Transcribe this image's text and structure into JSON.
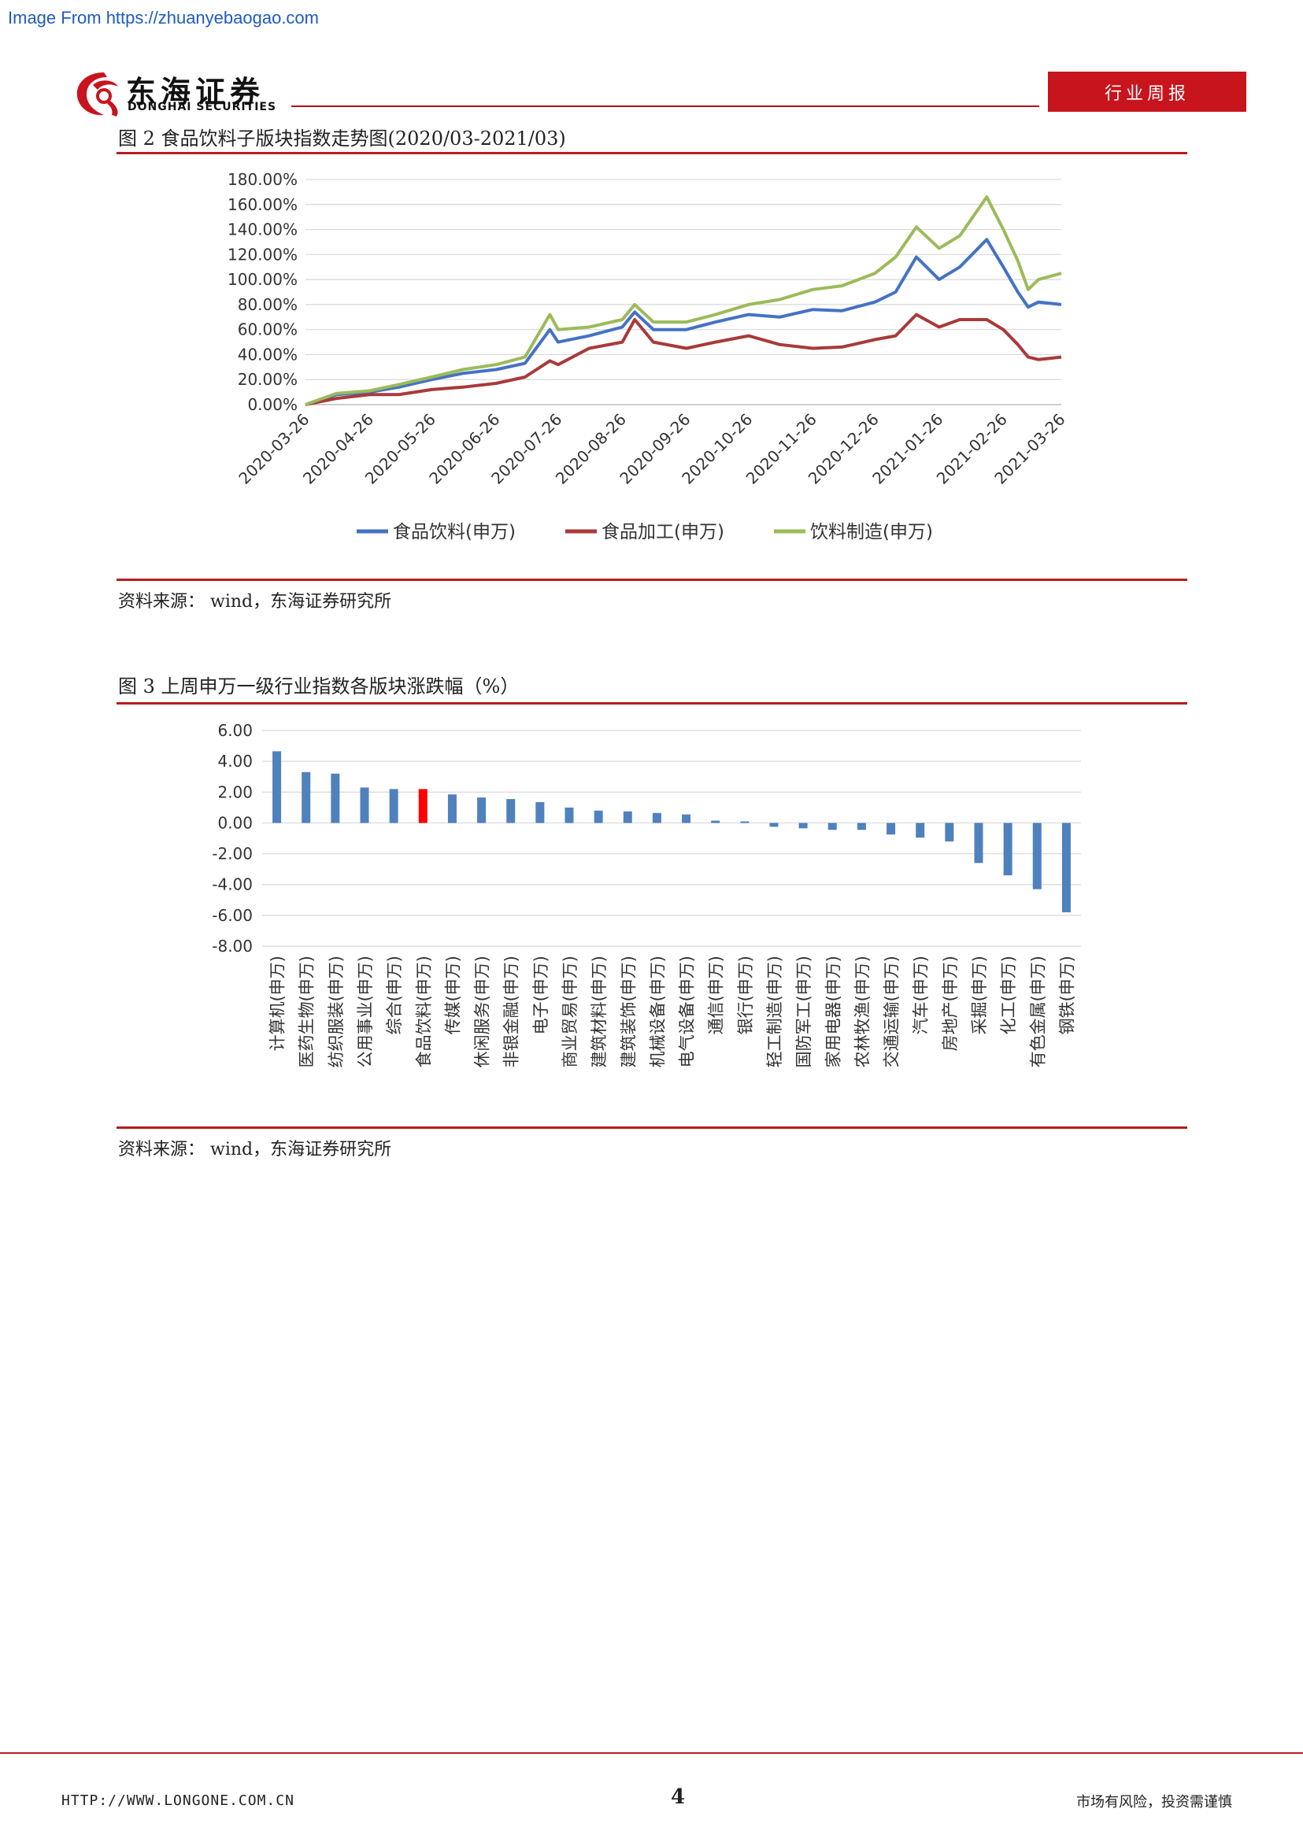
{
  "watermark": "Image From https://zhuanyebaogao.com",
  "header": {
    "brand_cn": "东海证券",
    "brand_en": "DONGHAI SECURITIES",
    "report_type": "行业周报"
  },
  "figure2": {
    "title": "图 2    食品饮料子版块指数走势图(2020/03-2021/03)",
    "source": "资料来源：  wind，东海证券研究所"
  },
  "figure3": {
    "title": "图 3    上周申万一级行业指数各版块涨跌幅（%）",
    "source": "资料来源：  wind，东海证券研究所"
  },
  "footer": {
    "url": "HTTP://WWW.LONGONE.COM.CN",
    "page_number": "4",
    "disclaimer": "市场有风险，投资需谨慎"
  },
  "colors": {
    "brand_red": "#c8141d",
    "series_blue": "#4472c4",
    "series_red": "#a93a3a",
    "series_green": "#9bbb59",
    "bar_blue": "#4f81bd",
    "bar_highlight": "#ff0000"
  },
  "chart_data": [
    {
      "type": "line",
      "x_ticks": [
        "2020-03-26",
        "2020-04-26",
        "2020-05-26",
        "2020-06-26",
        "2020-07-26",
        "2020-08-26",
        "2020-09-26",
        "2020-10-26",
        "2020-11-26",
        "2020-12-26",
        "2021-01-26",
        "2021-02-26",
        "2021-03-26"
      ],
      "y_ticks": [
        "180.00%",
        "160.00%",
        "140.00%",
        "120.00%",
        "100.00%",
        "80.00%",
        "60.00%",
        "40.00%",
        "20.00%",
        "0.00%"
      ],
      "ylim": [
        0,
        180
      ],
      "grid": true,
      "legend_position": "bottom",
      "series": [
        {
          "name": "食品饮料(申万)",
          "color": "#4472c4",
          "x": [
            "2020-03-26",
            "2020-04-10",
            "2020-04-26",
            "2020-05-10",
            "2020-05-26",
            "2020-06-10",
            "2020-06-26",
            "2020-07-10",
            "2020-07-22",
            "2020-07-26",
            "2020-08-10",
            "2020-08-26",
            "2020-09-01",
            "2020-09-10",
            "2020-09-26",
            "2020-10-10",
            "2020-10-26",
            "2020-11-10",
            "2020-11-26",
            "2020-12-10",
            "2020-12-26",
            "2021-01-05",
            "2021-01-15",
            "2021-01-26",
            "2021-02-05",
            "2021-02-18",
            "2021-02-26",
            "2021-03-05",
            "2021-03-10",
            "2021-03-15",
            "2021-03-26"
          ],
          "values": [
            0,
            8,
            10,
            14,
            20,
            25,
            28,
            33,
            60,
            50,
            55,
            62,
            74,
            60,
            60,
            66,
            72,
            70,
            76,
            75,
            82,
            90,
            118,
            100,
            110,
            132,
            110,
            90,
            78,
            82,
            80
          ]
        },
        {
          "name": "食品加工(申万)",
          "color": "#a93a3a",
          "x": [
            "2020-03-26",
            "2020-04-10",
            "2020-04-26",
            "2020-05-10",
            "2020-05-26",
            "2020-06-10",
            "2020-06-26",
            "2020-07-10",
            "2020-07-22",
            "2020-07-26",
            "2020-08-10",
            "2020-08-26",
            "2020-09-01",
            "2020-09-10",
            "2020-09-26",
            "2020-10-10",
            "2020-10-26",
            "2020-11-10",
            "2020-11-26",
            "2020-12-10",
            "2020-12-26",
            "2021-01-05",
            "2021-01-15",
            "2021-01-26",
            "2021-02-05",
            "2021-02-18",
            "2021-02-26",
            "2021-03-05",
            "2021-03-10",
            "2021-03-15",
            "2021-03-26"
          ],
          "values": [
            0,
            5,
            8,
            8,
            12,
            14,
            17,
            22,
            35,
            32,
            45,
            50,
            68,
            50,
            45,
            50,
            55,
            48,
            45,
            46,
            52,
            55,
            72,
            62,
            68,
            68,
            60,
            48,
            38,
            36,
            38
          ]
        },
        {
          "name": "饮料制造(申万)",
          "color": "#9bbb59",
          "x": [
            "2020-03-26",
            "2020-04-10",
            "2020-04-26",
            "2020-05-10",
            "2020-05-26",
            "2020-06-10",
            "2020-06-26",
            "2020-07-10",
            "2020-07-22",
            "2020-07-26",
            "2020-08-10",
            "2020-08-26",
            "2020-09-01",
            "2020-09-10",
            "2020-09-26",
            "2020-10-10",
            "2020-10-26",
            "2020-11-10",
            "2020-11-26",
            "2020-12-10",
            "2020-12-26",
            "2021-01-05",
            "2021-01-15",
            "2021-01-26",
            "2021-02-05",
            "2021-02-18",
            "2021-02-26",
            "2021-03-05",
            "2021-03-10",
            "2021-03-15",
            "2021-03-26"
          ],
          "values": [
            0,
            9,
            11,
            16,
            22,
            28,
            32,
            38,
            72,
            60,
            62,
            68,
            80,
            66,
            66,
            72,
            80,
            84,
            92,
            95,
            105,
            118,
            142,
            125,
            135,
            166,
            140,
            115,
            92,
            100,
            105
          ]
        }
      ]
    },
    {
      "type": "bar",
      "categories": [
        "计算机(申万)",
        "医药生物(申万)",
        "纺织服装(申万)",
        "公用事业(申万)",
        "综合(申万)",
        "食品饮料(申万)",
        "传媒(申万)",
        "休闲服务(申万)",
        "非银金融(申万)",
        "电子(申万)",
        "商业贸易(申万)",
        "建筑材料(申万)",
        "建筑装饰(申万)",
        "机械设备(申万)",
        "电气设备(申万)",
        "通信(申万)",
        "银行(申万)",
        "轻工制造(申万)",
        "国防军工(申万)",
        "家用电器(申万)",
        "农林牧渔(申万)",
        "交通运输(申万)",
        "汽车(申万)",
        "房地产(申万)",
        "采掘(申万)",
        "化工(申万)",
        "有色金属(申万)",
        "钢铁(申万)"
      ],
      "values": [
        4.65,
        3.3,
        3.2,
        2.3,
        2.2,
        2.2,
        1.85,
        1.65,
        1.55,
        1.35,
        1.0,
        0.8,
        0.75,
        0.65,
        0.55,
        0.15,
        0.1,
        -0.25,
        -0.35,
        -0.45,
        -0.45,
        -0.75,
        -0.95,
        -1.2,
        -2.6,
        -3.4,
        -4.3,
        -5.8
      ],
      "highlight": "食品饮料(申万)",
      "y_ticks": [
        "6.00",
        "4.00",
        "2.00",
        "0.00",
        "-2.00",
        "-4.00",
        "-6.00",
        "-8.00"
      ],
      "ylim": [
        -8,
        6
      ],
      "grid": true
    }
  ]
}
